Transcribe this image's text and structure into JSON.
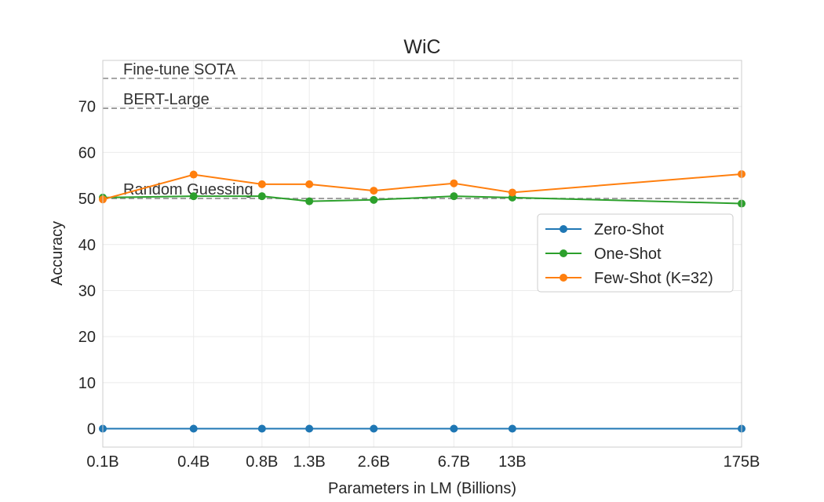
{
  "chart_data": {
    "type": "line",
    "title": "WiC",
    "xlabel": "Parameters in LM (Billions)",
    "ylabel": "Accuracy",
    "categories": [
      "0.1B",
      "0.4B",
      "0.8B",
      "1.3B",
      "2.6B",
      "6.7B",
      "13B",
      "175B"
    ],
    "x_values": [
      0.125,
      0.35,
      0.76,
      1.3,
      2.7,
      6.7,
      13,
      175
    ],
    "x_scale": "log",
    "ylim": [
      -4,
      80
    ],
    "yticks": [
      0,
      10,
      20,
      30,
      40,
      50,
      60,
      70
    ],
    "grid": true,
    "legend_position": "center-right",
    "series": [
      {
        "name": "Zero-Shot",
        "color": "#1f77b4",
        "values": [
          0,
          0,
          0,
          0,
          0,
          0,
          0,
          0
        ]
      },
      {
        "name": "One-Shot",
        "color": "#2ca02c",
        "values": [
          50.2,
          50.5,
          50.5,
          49.4,
          49.7,
          50.5,
          50.2,
          48.9
        ]
      },
      {
        "name": "Few-Shot (K=32)",
        "color": "#ff7f0e",
        "values": [
          49.8,
          55.2,
          53.1,
          53.1,
          51.7,
          53.3,
          51.3,
          55.3
        ]
      }
    ],
    "reference_lines": [
      {
        "label": "Fine-tune SOTA",
        "value": 76.1
      },
      {
        "label": "BERT-Large",
        "value": 69.6
      },
      {
        "label": "Random Guessing",
        "value": 50.0
      }
    ]
  }
}
